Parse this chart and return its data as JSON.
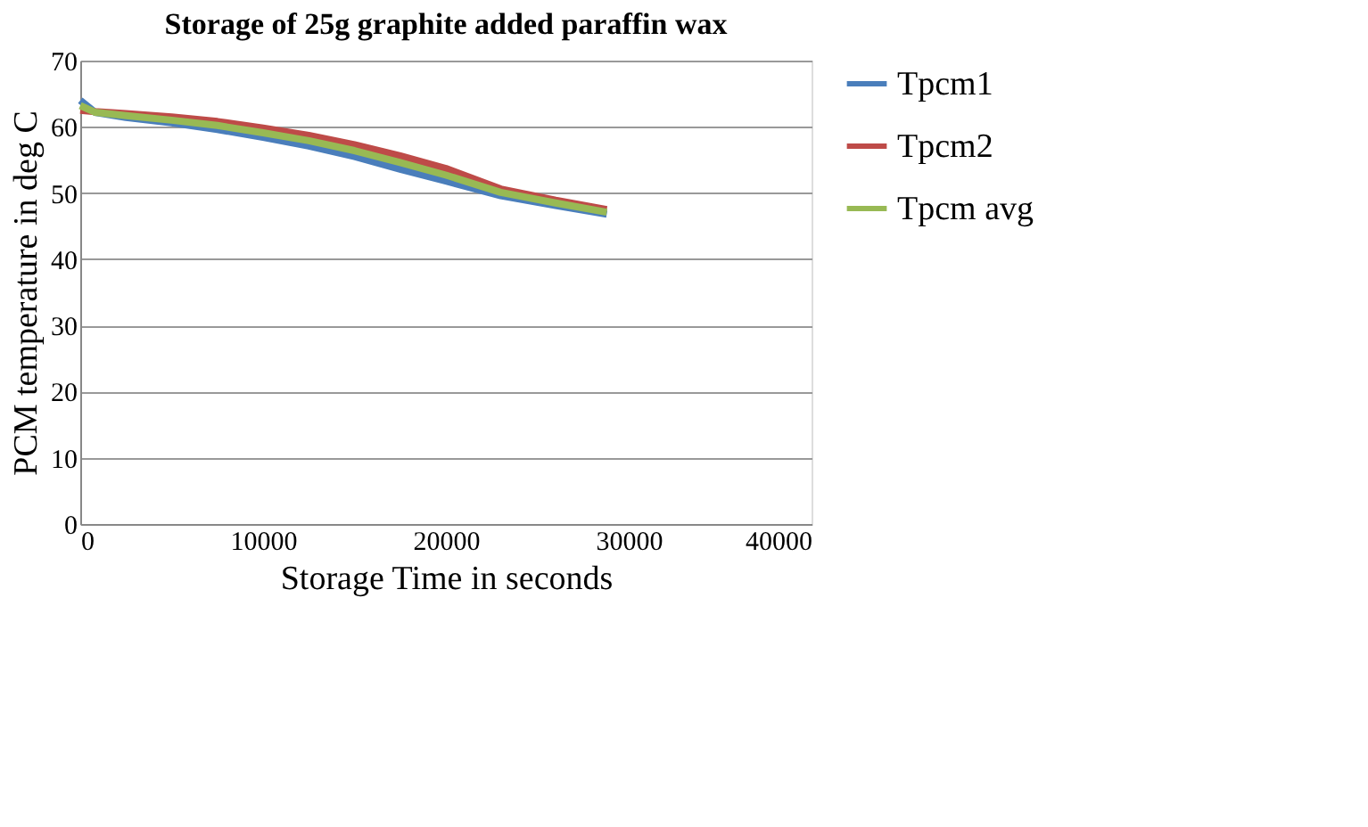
{
  "chart_data": {
    "type": "line",
    "title": "Storage of 25g graphite added paraffin wax",
    "xlabel": "Storage Time in seconds",
    "ylabel": "PCM temperature in deg C",
    "x": [
      0,
      800,
      2500,
      5000,
      7500,
      10000,
      12500,
      15000,
      17500,
      20000,
      23000,
      26000,
      28800
    ],
    "series": [
      {
        "name": "Tpcm1",
        "color": "#4a7ebb",
        "values": [
          64,
          62.2,
          61.4,
          60.6,
          59.6,
          58.4,
          57.1,
          55.5,
          53.6,
          51.8,
          49.6,
          48.1,
          46.8
        ]
      },
      {
        "name": "Tpcm2",
        "color": "#be4b48",
        "values": [
          62.5,
          62.3,
          62.0,
          61.5,
          60.8,
          59.8,
          58.7,
          57.3,
          55.6,
          53.7,
          50.6,
          48.9,
          47.5
        ]
      },
      {
        "name": "Tpcm avg",
        "color": "#98b954",
        "values": [
          63.2,
          62.2,
          61.7,
          61.0,
          60.2,
          59.1,
          57.9,
          56.4,
          54.6,
          52.7,
          50.1,
          48.5,
          47.1
        ]
      }
    ],
    "xlim": [
      0,
      40000
    ],
    "xticks": [
      0,
      10000,
      20000,
      30000,
      40000
    ],
    "ylim": [
      0,
      70
    ],
    "yticks": [
      0,
      10,
      20,
      30,
      40,
      50,
      60,
      70
    ],
    "grid": "y",
    "legend": "right",
    "marker": "none",
    "line_style": "solid"
  }
}
